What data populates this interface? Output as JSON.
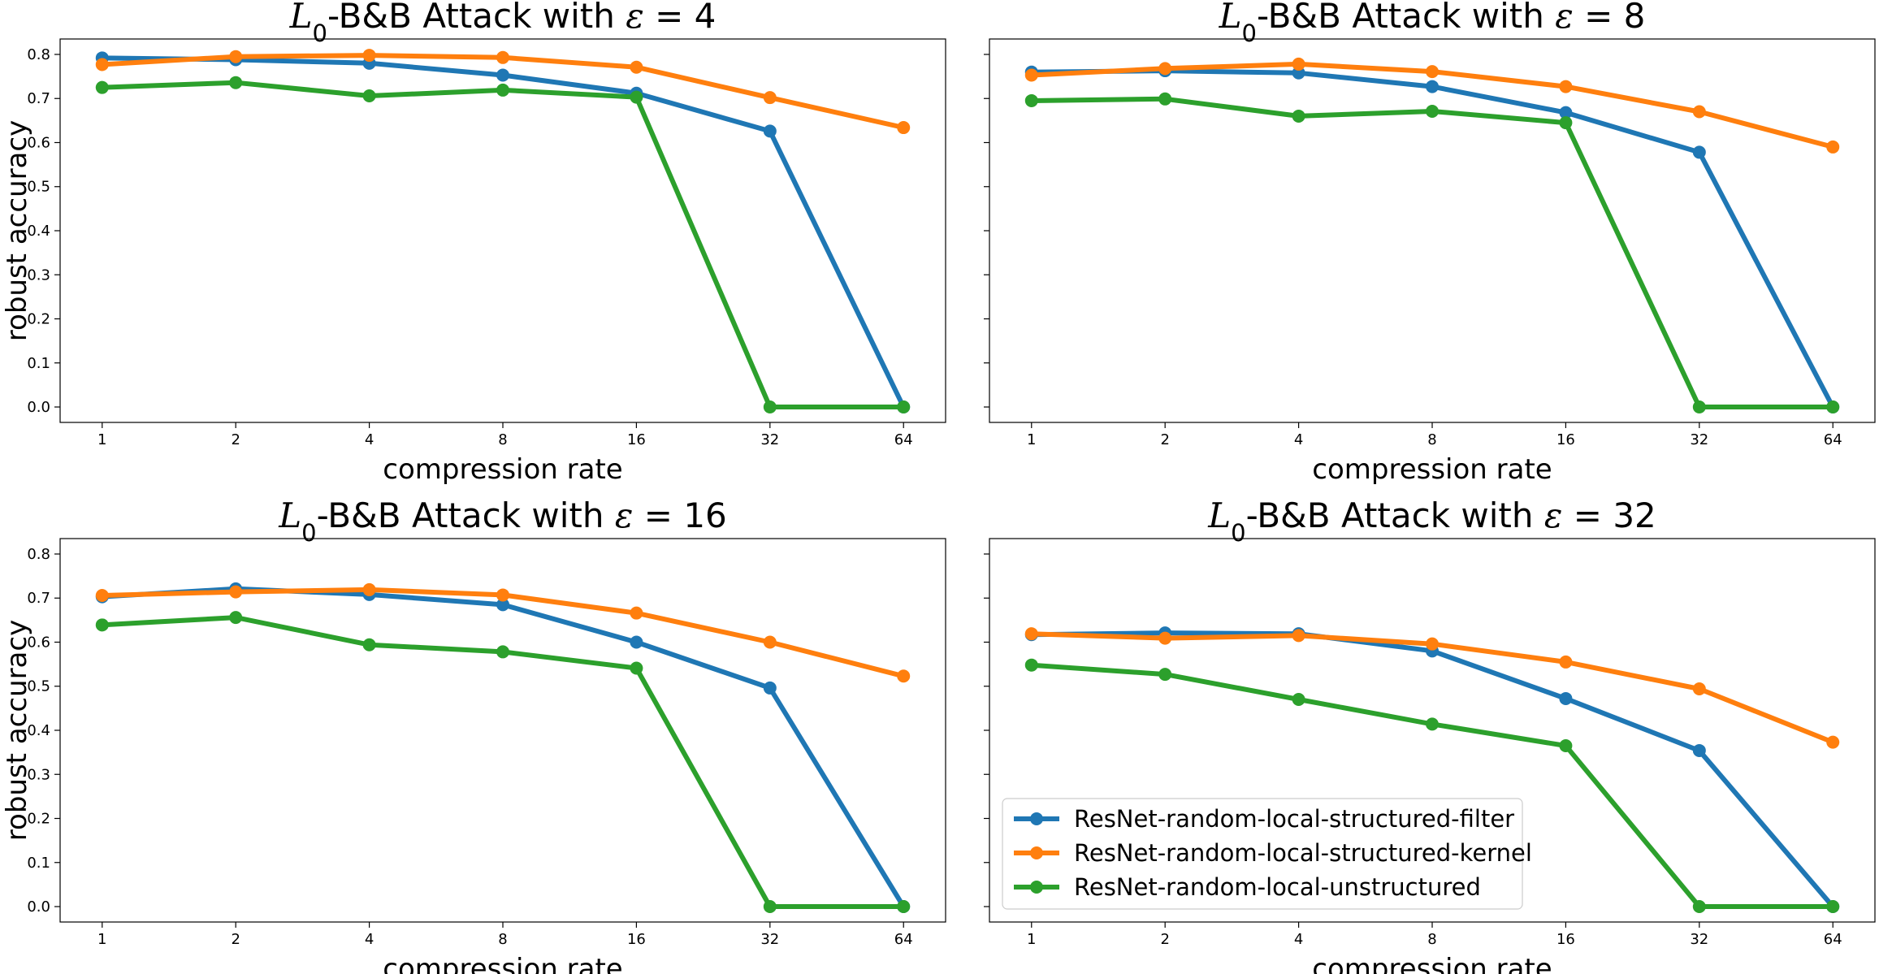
{
  "figure": {
    "shared_x_categories": [
      "1",
      "2",
      "4",
      "8",
      "16",
      "32",
      "64"
    ],
    "xlabel": "compression rate",
    "ylabel": "robust accuracy",
    "series_colors": [
      "#1f77b4",
      "#ff7f0e",
      "#2ca02c"
    ],
    "legend": {
      "placement": "lower-left of bottom-right panel",
      "entries": [
        "ResNet-random-local-structured-filter",
        "ResNet-random-local-structured-kernel",
        "ResNet-random-local-unstructured"
      ]
    }
  },
  "chart_data": [
    {
      "type": "line",
      "title": {
        "prefix": "L",
        "subscript": "0",
        "middle": "-B&B Attack with ",
        "symbol": "ε",
        "equals": " = ",
        "value": "4"
      },
      "categories": [
        "1",
        "2",
        "4",
        "8",
        "16",
        "32",
        "64"
      ],
      "xlabel": "compression rate",
      "ylabel": "robust accuracy",
      "ylim": [
        -0.035,
        0.835
      ],
      "yticks": [
        "0.0",
        "0.1",
        "0.2",
        "0.3",
        "0.4",
        "0.5",
        "0.6",
        "0.7",
        "0.8"
      ],
      "grid": false,
      "series": [
        {
          "name": "ResNet-random-local-structured-filter",
          "color": "#1f77b4",
          "values": [
            0.792,
            0.788,
            0.78,
            0.753,
            0.712,
            0.626,
            0.0
          ]
        },
        {
          "name": "ResNet-random-local-structured-kernel",
          "color": "#ff7f0e",
          "values": [
            0.777,
            0.795,
            0.798,
            0.793,
            0.771,
            0.702,
            0.634
          ]
        },
        {
          "name": "ResNet-random-local-unstructured",
          "color": "#2ca02c",
          "values": [
            0.725,
            0.736,
            0.706,
            0.719,
            0.703,
            0.0,
            0.0
          ]
        }
      ]
    },
    {
      "type": "line",
      "title": {
        "prefix": "L",
        "subscript": "0",
        "middle": "-B&B Attack with ",
        "symbol": "ε",
        "equals": " = ",
        "value": "8"
      },
      "categories": [
        "1",
        "2",
        "4",
        "8",
        "16",
        "32",
        "64"
      ],
      "xlabel": "compression rate",
      "ylabel": "",
      "ylim": [
        -0.035,
        0.835
      ],
      "yticks": [
        "0.0",
        "0.1",
        "0.2",
        "0.3",
        "0.4",
        "0.5",
        "0.6",
        "0.7",
        "0.8"
      ],
      "grid": false,
      "series": [
        {
          "name": "ResNet-random-local-structured-filter",
          "color": "#1f77b4",
          "values": [
            0.76,
            0.763,
            0.758,
            0.727,
            0.668,
            0.578,
            0.0
          ]
        },
        {
          "name": "ResNet-random-local-structured-kernel",
          "color": "#ff7f0e",
          "values": [
            0.753,
            0.768,
            0.778,
            0.761,
            0.727,
            0.67,
            0.59
          ]
        },
        {
          "name": "ResNet-random-local-unstructured",
          "color": "#2ca02c",
          "values": [
            0.695,
            0.699,
            0.66,
            0.671,
            0.645,
            0.0,
            0.0
          ]
        }
      ]
    },
    {
      "type": "line",
      "title": {
        "prefix": "L",
        "subscript": "0",
        "middle": "-B&B Attack with ",
        "symbol": "ε",
        "equals": " = ",
        "value": "16"
      },
      "categories": [
        "1",
        "2",
        "4",
        "8",
        "16",
        "32",
        "64"
      ],
      "xlabel": "compression rate",
      "ylabel": "robust accuracy",
      "ylim": [
        -0.035,
        0.835
      ],
      "yticks": [
        "0.0",
        "0.1",
        "0.2",
        "0.3",
        "0.4",
        "0.5",
        "0.6",
        "0.7",
        "0.8"
      ],
      "grid": false,
      "series": [
        {
          "name": "ResNet-random-local-structured-filter",
          "color": "#1f77b4",
          "values": [
            0.703,
            0.721,
            0.708,
            0.685,
            0.6,
            0.496,
            0.0
          ]
        },
        {
          "name": "ResNet-random-local-structured-kernel",
          "color": "#ff7f0e",
          "values": [
            0.706,
            0.714,
            0.719,
            0.707,
            0.666,
            0.6,
            0.523
          ]
        },
        {
          "name": "ResNet-random-local-unstructured",
          "color": "#2ca02c",
          "values": [
            0.639,
            0.656,
            0.594,
            0.578,
            0.541,
            0.0,
            0.0
          ]
        }
      ]
    },
    {
      "type": "line",
      "title": {
        "prefix": "L",
        "subscript": "0",
        "middle": "-B&B Attack with ",
        "symbol": "ε",
        "equals": " = ",
        "value": "32"
      },
      "categories": [
        "1",
        "2",
        "4",
        "8",
        "16",
        "32",
        "64"
      ],
      "xlabel": "compression rate",
      "ylabel": "",
      "ylim": [
        -0.035,
        0.835
      ],
      "yticks": [
        "0.0",
        "0.1",
        "0.2",
        "0.3",
        "0.4",
        "0.5",
        "0.6",
        "0.7",
        "0.8"
      ],
      "grid": false,
      "legend": "lower-left",
      "series": [
        {
          "name": "ResNet-random-local-structured-filter",
          "color": "#1f77b4",
          "values": [
            0.617,
            0.621,
            0.619,
            0.58,
            0.472,
            0.354,
            0.0
          ]
        },
        {
          "name": "ResNet-random-local-structured-kernel",
          "color": "#ff7f0e",
          "values": [
            0.619,
            0.609,
            0.615,
            0.596,
            0.555,
            0.494,
            0.373
          ]
        },
        {
          "name": "ResNet-random-local-unstructured",
          "color": "#2ca02c",
          "values": [
            0.548,
            0.527,
            0.47,
            0.414,
            0.365,
            0.0,
            0.0
          ]
        }
      ]
    }
  ]
}
